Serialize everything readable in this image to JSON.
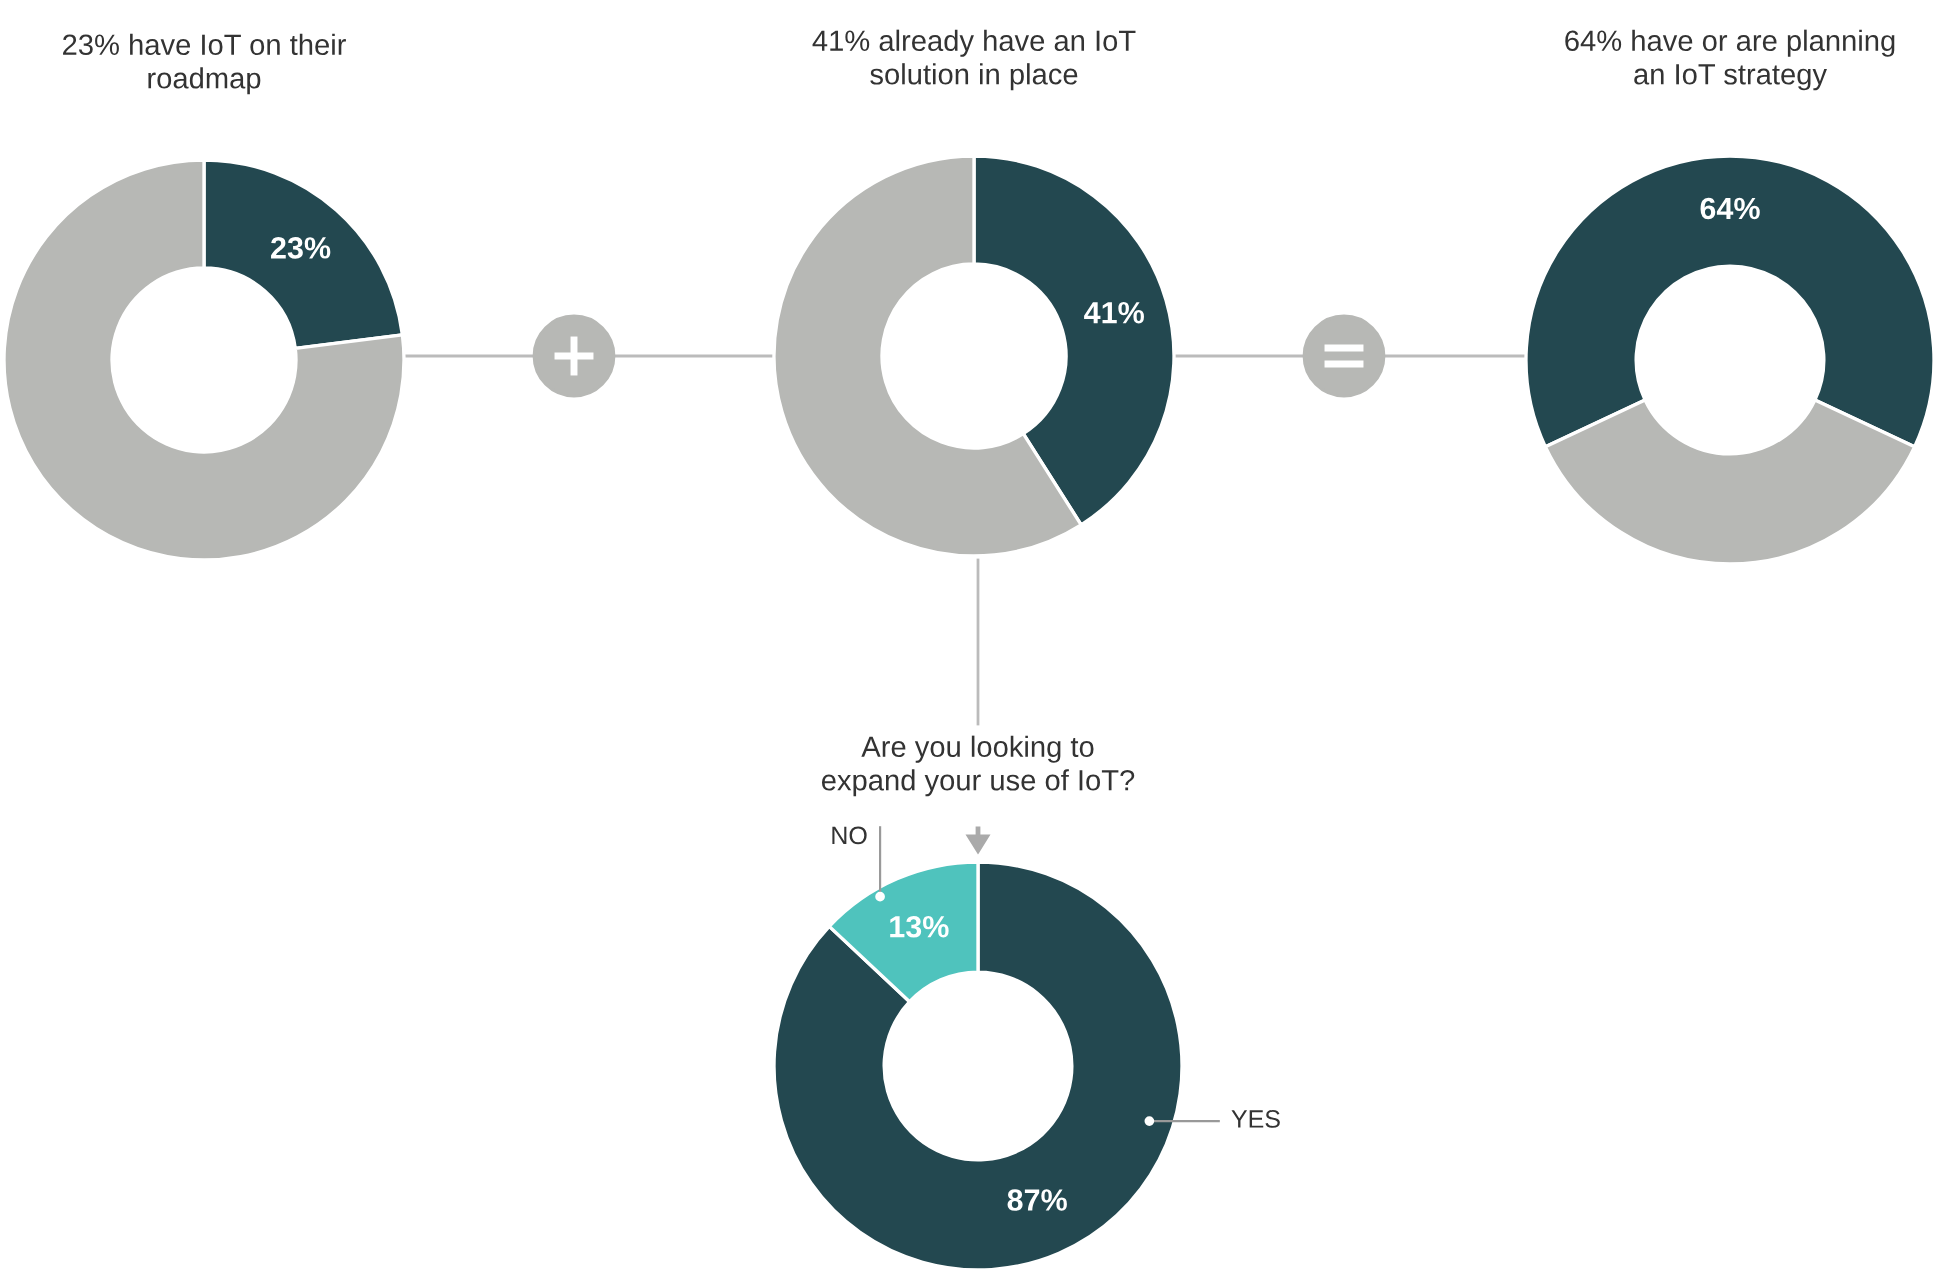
{
  "chart_data": [
    {
      "type": "donut",
      "title": "23% have IoT on their\nroadmap",
      "categories": [
        null,
        null
      ],
      "values": [
        23,
        77
      ],
      "colors": [
        "#234850",
        "#b7b8b5"
      ],
      "value_labels": [
        "23%",
        null
      ]
    },
    {
      "type": "donut",
      "title": "41% already have an IoT\nsolution in place",
      "categories": [
        null,
        null
      ],
      "values": [
        41,
        59
      ],
      "colors": [
        "#234850",
        "#b7b8b5"
      ],
      "value_labels": [
        "41%",
        null
      ]
    },
    {
      "type": "donut",
      "title": "64% have or are planning\nan IoT strategy",
      "categories": [
        null,
        null
      ],
      "values": [
        64,
        36
      ],
      "colors": [
        "#234850",
        "#b7b8b5"
      ],
      "value_labels": [
        "64%",
        null
      ]
    },
    {
      "type": "donut",
      "title": "Are you looking to\nexpand your use of IoT?",
      "categories": [
        "YES",
        "NO"
      ],
      "values": [
        87,
        13
      ],
      "colors": [
        "#234850",
        "#4fc3bd"
      ],
      "value_labels": [
        "87%",
        "13%"
      ]
    }
  ]
}
